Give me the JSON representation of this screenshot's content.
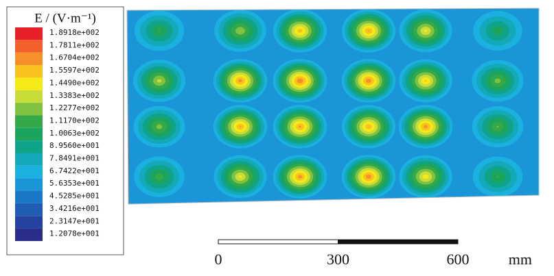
{
  "chart_data": {
    "type": "contour",
    "legend_title": "E / (V·m⁻¹)",
    "levels": [
      {
        "value": 189.18,
        "label": "1.8918e+002"
      },
      {
        "value": 178.11,
        "label": "1.7811e+002"
      },
      {
        "value": 167.04,
        "label": "1.6704e+002"
      },
      {
        "value": 155.97,
        "label": "1.5597e+002"
      },
      {
        "value": 144.9,
        "label": "1.4490e+002"
      },
      {
        "value": 133.83,
        "label": "1.3383e+002"
      },
      {
        "value": 122.77,
        "label": "1.2277e+002"
      },
      {
        "value": 111.7,
        "label": "1.1170e+002"
      },
      {
        "value": 100.63,
        "label": "1.0063e+002"
      },
      {
        "value": 89.56,
        "label": "8.9560e+001"
      },
      {
        "value": 78.491,
        "label": "7.8491e+001"
      },
      {
        "value": 67.422,
        "label": "6.7422e+001"
      },
      {
        "value": 56.353,
        "label": "5.6353e+001"
      },
      {
        "value": 45.285,
        "label": "4.5285e+001"
      },
      {
        "value": 34.216,
        "label": "3.4216e+001"
      },
      {
        "value": 23.147,
        "label": "2.3147e+001"
      },
      {
        "value": 12.078,
        "label": "1.2078e+001"
      }
    ],
    "colors": [
      "#e8202a",
      "#f2612a",
      "#f5902a",
      "#f9c21e",
      "#f5ea16",
      "#c8dc3a",
      "#7fc241",
      "#35a94a",
      "#1ca35c",
      "#0fa38a",
      "#14a9b8",
      "#1ab0e0",
      "#1a95d8",
      "#1a78c8",
      "#1f5cb3",
      "#2443a0",
      "#2b2d8a"
    ],
    "background": 60,
    "peaks": [
      [
        115,
        135,
        165,
        170,
        150,
        110
      ],
      [
        140,
        175,
        180,
        178,
        160,
        130
      ],
      [
        130,
        170,
        172,
        168,
        175,
        125
      ],
      [
        120,
        150,
        175,
        178,
        155,
        115
      ]
    ],
    "scalebar": {
      "ticks": [
        0,
        300,
        600
      ],
      "unit": "mm"
    }
  }
}
